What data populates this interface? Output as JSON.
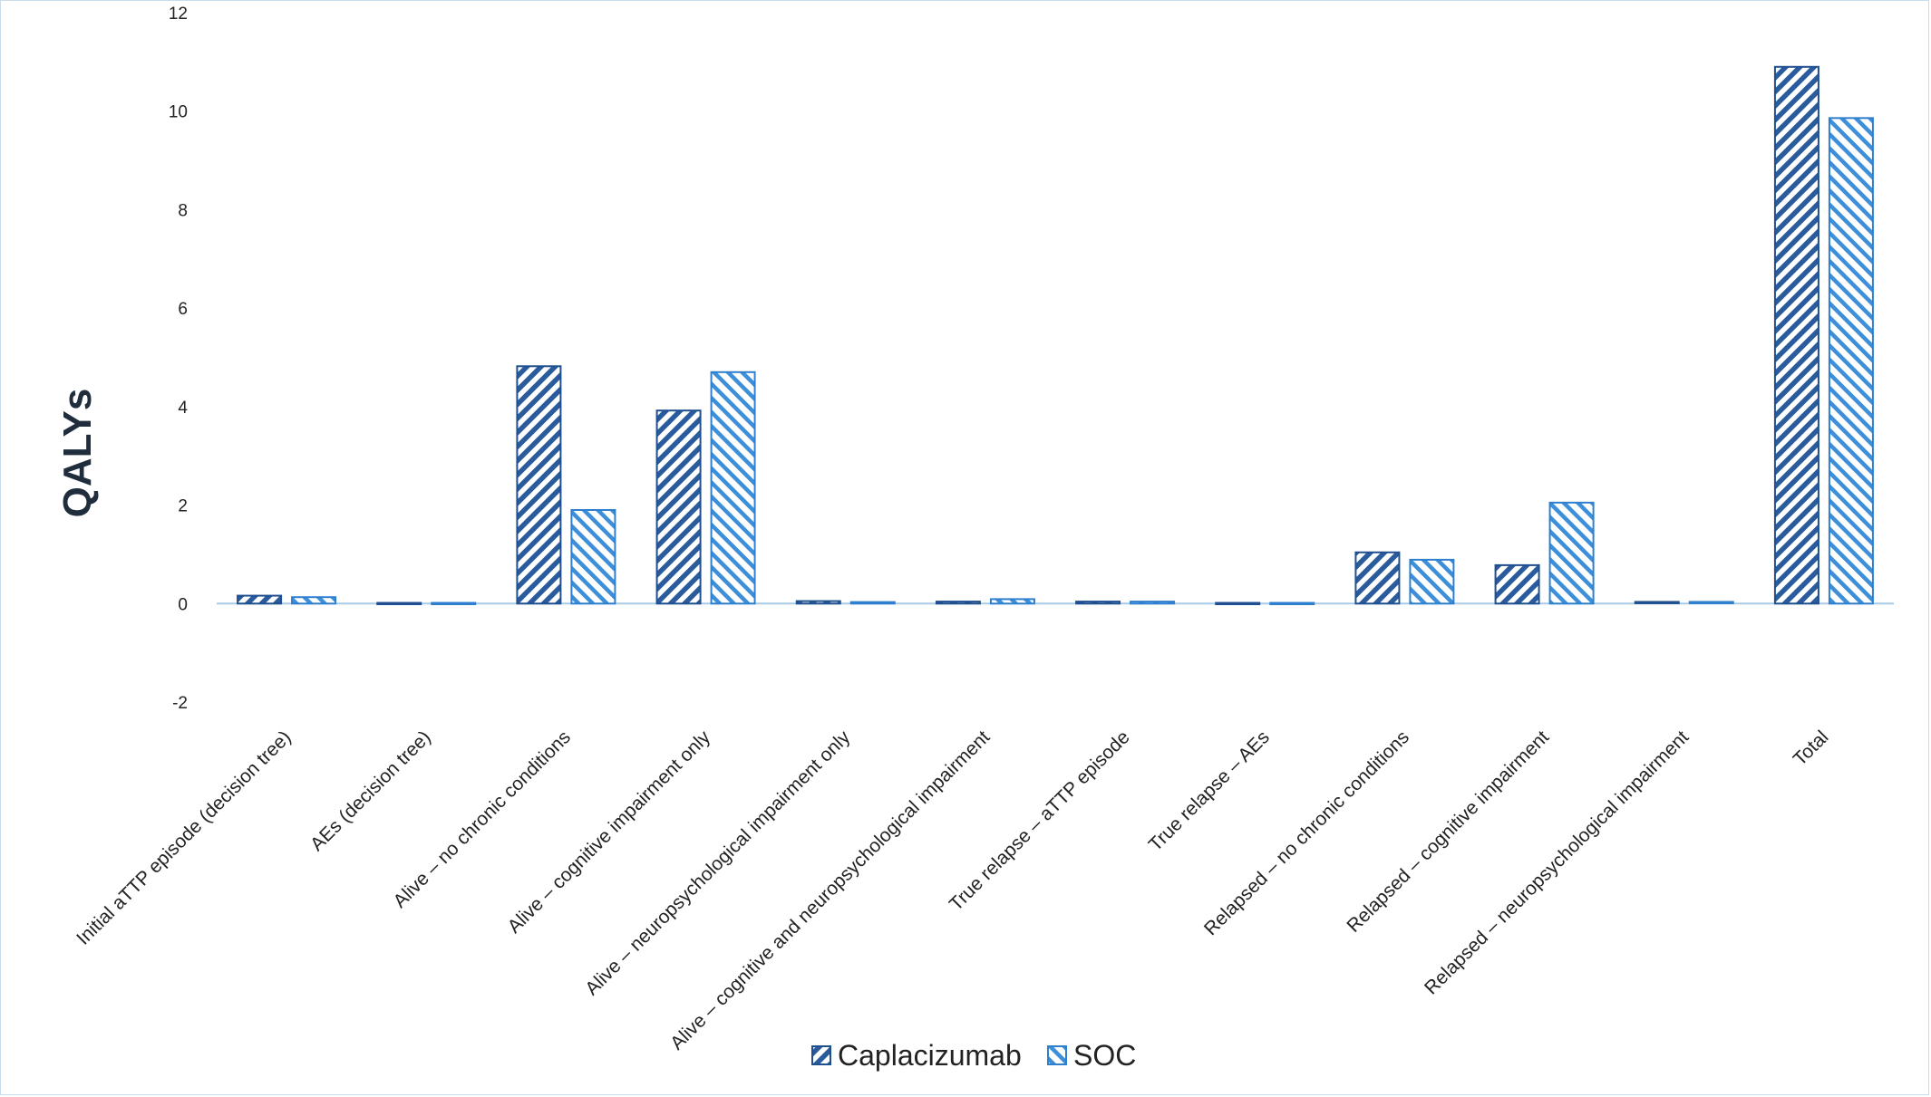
{
  "chart_data": {
    "type": "bar",
    "ylabel": "QALYs",
    "xlabel": "",
    "ylim": [
      -2,
      12
    ],
    "yticks": [
      -2,
      0,
      2,
      4,
      6,
      8,
      10,
      12
    ],
    "grid": false,
    "legend_position": "bottom-center",
    "categories": [
      "Initial aTTP episode (decision tree)",
      "AEs (decision tree)",
      "Alive – no chronic conditions",
      "Alive – cognitive impairment only",
      "Alive – neuropsychological impairment only",
      "Alive – cognitive and neuropsychological impairment",
      "True relapse – aTTP episode",
      "True relapse – AEs",
      "Relapsed – no chronic conditions",
      "Relapsed – cognitive impairment",
      "Relapsed – neuropsychological impairment",
      "Total"
    ],
    "series": [
      {
        "name": "Caplacizumab",
        "color": "#2a5b9c",
        "pattern": "dense-diagonal-hatch",
        "values": [
          0.16,
          0.0,
          4.82,
          3.92,
          0.05,
          0.04,
          0.04,
          0.0,
          1.04,
          0.78,
          0.02,
          10.9
        ]
      },
      {
        "name": "SOC",
        "color": "#3d8fd9",
        "pattern": "light-diagonal-hatch",
        "values": [
          0.13,
          0.0,
          1.9,
          4.7,
          0.03,
          0.09,
          0.04,
          0.0,
          0.89,
          2.05,
          0.02,
          9.86
        ]
      }
    ]
  }
}
